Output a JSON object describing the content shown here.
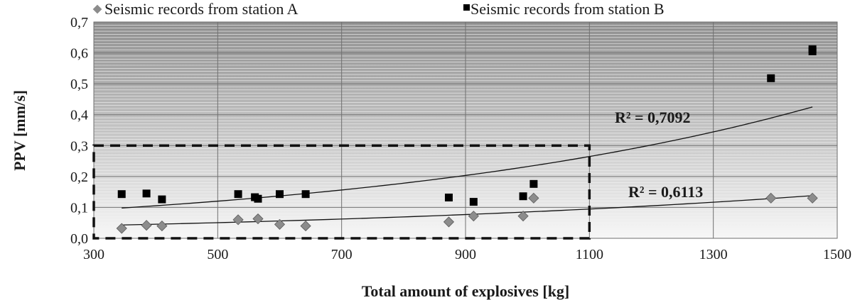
{
  "chart_data": {
    "type": "scatter",
    "xlabel": "Total amount of explosives [kg]",
    "ylabel": "PPV [mm/s]",
    "xlim": [
      300,
      1500
    ],
    "ylim": [
      0,
      0.7
    ],
    "x_ticks": [
      "300",
      "500",
      "700",
      "900",
      "1100",
      "1300",
      "1500"
    ],
    "y_ticks": [
      "0,0",
      "0,1",
      "0,2",
      "0,3",
      "0,4",
      "0,5",
      "0,6",
      "0,7"
    ],
    "grid": true,
    "legend_position": "top",
    "series": [
      {
        "name": "Seismic records from station A",
        "marker": "diamond",
        "color": "#8c8c8c",
        "points": [
          [
            345,
            0.032
          ],
          [
            385,
            0.042
          ],
          [
            410,
            0.04
          ],
          [
            533,
            0.06
          ],
          [
            565,
            0.063
          ],
          [
            600,
            0.045
          ],
          [
            642,
            0.04
          ],
          [
            873,
            0.053
          ],
          [
            913,
            0.072
          ],
          [
            993,
            0.072
          ],
          [
            1010,
            0.13
          ],
          [
            1393,
            0.13
          ],
          [
            1460,
            0.13
          ]
        ],
        "trendline": {
          "type": "exponential",
          "from": [
            345,
            0.043
          ],
          "to": [
            1460,
            0.138
          ],
          "r2_label": "R² = 0,6113"
        }
      },
      {
        "name": "Seismic records from station B",
        "marker": "square",
        "color": "#000000",
        "points": [
          [
            345,
            0.143
          ],
          [
            385,
            0.145
          ],
          [
            410,
            0.126
          ],
          [
            533,
            0.143
          ],
          [
            560,
            0.133
          ],
          [
            565,
            0.128
          ],
          [
            600,
            0.143
          ],
          [
            642,
            0.143
          ],
          [
            873,
            0.132
          ],
          [
            913,
            0.118
          ],
          [
            993,
            0.136
          ],
          [
            1010,
            0.176
          ],
          [
            1393,
            0.518
          ],
          [
            1460,
            0.605
          ],
          [
            1460,
            0.612
          ]
        ],
        "trendline": {
          "type": "exponential",
          "from": [
            345,
            0.098
          ],
          "to": [
            1460,
            0.425
          ],
          "r2_label": "R² = 0,7092"
        }
      }
    ],
    "annotations": [
      {
        "type": "dashed-rectangle",
        "x_range": [
          300,
          1100
        ],
        "y_range": [
          0,
          0.3
        ]
      }
    ]
  }
}
